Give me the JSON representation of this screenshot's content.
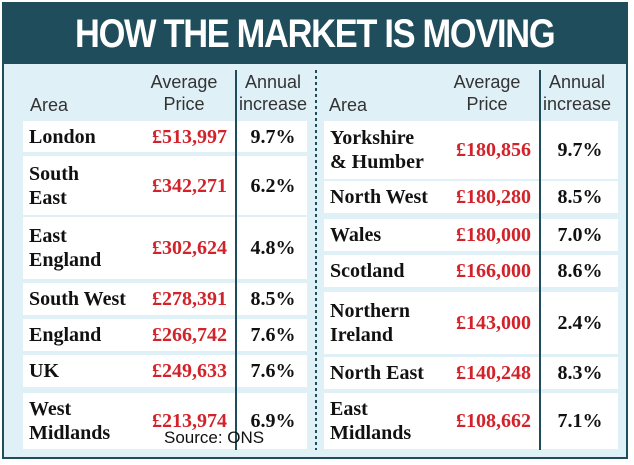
{
  "title": "HOW THE MARKET IS MOVING",
  "headers": {
    "area": "Area",
    "price_line1": "Average",
    "price_line2": "Price",
    "inc_line1": "Annual",
    "inc_line2": "increase"
  },
  "left_rows": [
    {
      "area": [
        "London"
      ],
      "price": "£513,997",
      "increase": "9.7%"
    },
    {
      "area": [
        "South",
        "East"
      ],
      "price": "£342,271",
      "increase": "6.2%"
    },
    {
      "area": [
        "East",
        "England"
      ],
      "price": "£302,624",
      "increase": "4.8%"
    },
    {
      "area": [
        "South West"
      ],
      "price": "£278,391",
      "increase": "8.5%"
    },
    {
      "area": [
        "England"
      ],
      "price": "£266,742",
      "increase": "7.6%"
    },
    {
      "area": [
        "UK"
      ],
      "price": "£249,633",
      "increase": "7.6%"
    },
    {
      "area": [
        "West",
        "Midlands"
      ],
      "price": "£213,974",
      "increase": "6.9%"
    }
  ],
  "right_rows": [
    {
      "area": [
        "Yorkshire",
        "& Humber"
      ],
      "price": "£180,856",
      "increase": "9.7%"
    },
    {
      "area": [
        "North West"
      ],
      "price": "£180,280",
      "increase": "8.5%"
    },
    {
      "area": [
        "Wales"
      ],
      "price": "£180,000",
      "increase": "7.0%"
    },
    {
      "area": [
        "Scotland"
      ],
      "price": "£166,000",
      "increase": "8.6%"
    },
    {
      "area": [
        "Northern",
        "Ireland"
      ],
      "price": "£143,000",
      "increase": "2.4%"
    },
    {
      "area": [
        "North East"
      ],
      "price": "£140,248",
      "increase": "8.3%"
    },
    {
      "area": [
        "East",
        "Midlands"
      ],
      "price": "£108,662",
      "increase": "7.1%"
    }
  ],
  "source": "Source: ONS",
  "colors": {
    "header_bg": "#1f4d5c",
    "panel_bg": "#dff0f7",
    "price_red": "#d2232a"
  }
}
